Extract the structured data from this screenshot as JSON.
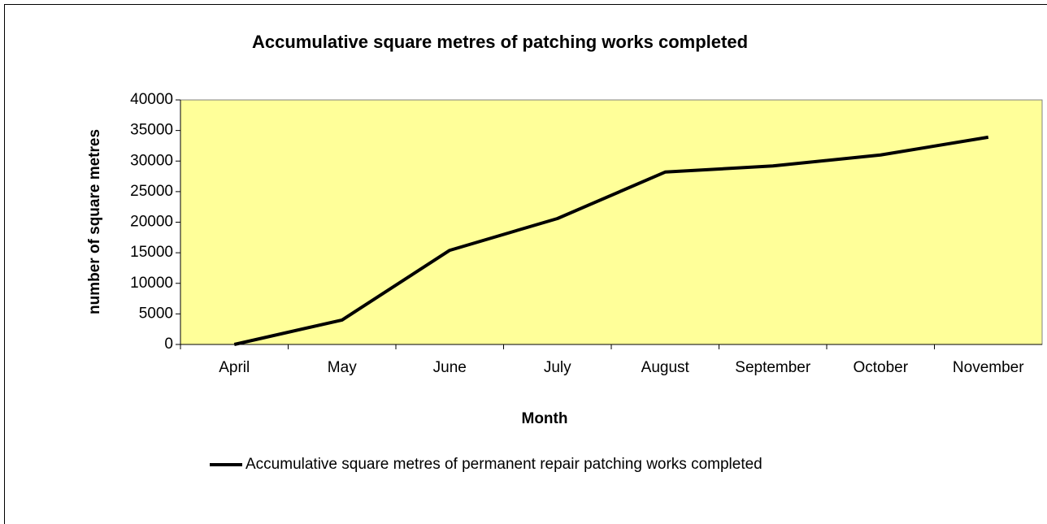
{
  "chart_data": {
    "type": "line",
    "title": "Accumulative square metres of patching works completed",
    "x_label": "Month",
    "y_label": "number of square metres",
    "categories": [
      "April",
      "May",
      "June",
      "July",
      "August",
      "September",
      "October",
      "November"
    ],
    "series": [
      {
        "name": "Accumulative square metres of permanent repair patching works completed",
        "color": "#000000",
        "values": [
          0,
          4000,
          15400,
          20600,
          28200,
          29200,
          31000,
          33900
        ]
      }
    ],
    "ylim": [
      0,
      40000
    ],
    "yticks": [
      0,
      5000,
      10000,
      15000,
      20000,
      25000,
      30000,
      35000,
      40000
    ],
    "plot_background": "#ffff99",
    "legend": "bottom"
  }
}
